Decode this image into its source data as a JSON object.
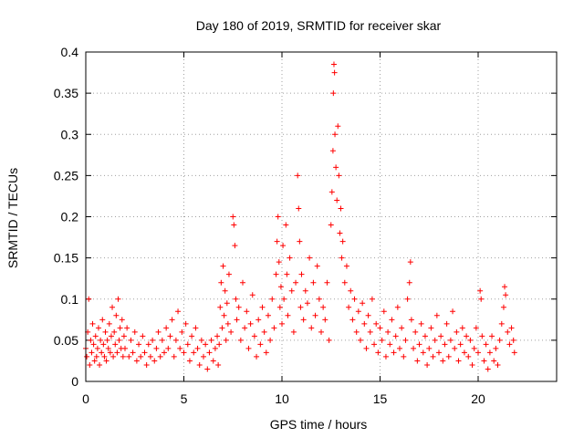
{
  "chart_data": {
    "type": "scatter",
    "title": "Day 180 of 2019, SRMTID for receiver skar",
    "xlabel": "GPS time / hours",
    "ylabel": "SRMTID / TECUs",
    "xlim": [
      0,
      24
    ],
    "ylim": [
      0,
      0.4
    ],
    "xticks": [
      0,
      5,
      10,
      15,
      20
    ],
    "yticks": [
      0,
      0.05,
      0.1,
      0.15,
      0.2,
      0.25,
      0.3,
      0.35,
      0.4
    ],
    "grid": true,
    "marker": "+",
    "color": "#ff0000",
    "series": [
      {
        "points": [
          [
            0.0,
            0.04
          ],
          [
            0.05,
            0.03
          ],
          [
            0.1,
            0.06
          ],
          [
            0.15,
            0.1
          ],
          [
            0.2,
            0.02
          ],
          [
            0.25,
            0.05
          ],
          [
            0.3,
            0.035
          ],
          [
            0.35,
            0.07
          ],
          [
            0.4,
            0.045
          ],
          [
            0.45,
            0.025
          ],
          [
            0.5,
            0.055
          ],
          [
            0.55,
            0.03
          ],
          [
            0.6,
            0.04
          ],
          [
            0.65,
            0.065
          ],
          [
            0.7,
            0.02
          ],
          [
            0.75,
            0.05
          ],
          [
            0.8,
            0.035
          ],
          [
            0.85,
            0.075
          ],
          [
            0.9,
            0.045
          ],
          [
            0.95,
            0.03
          ],
          [
            1.0,
            0.06
          ],
          [
            1.05,
            0.025
          ],
          [
            1.1,
            0.05
          ],
          [
            1.15,
            0.04
          ],
          [
            1.2,
            0.07
          ],
          [
            1.25,
            0.035
          ],
          [
            1.3,
            0.055
          ],
          [
            1.35,
            0.09
          ],
          [
            1.4,
            0.03
          ],
          [
            1.45,
            0.06
          ],
          [
            1.5,
            0.045
          ],
          [
            1.55,
            0.08
          ],
          [
            1.6,
            0.035
          ],
          [
            1.65,
            0.1
          ],
          [
            1.7,
            0.05
          ],
          [
            1.75,
            0.065
          ],
          [
            1.8,
            0.04
          ],
          [
            1.85,
            0.075
          ],
          [
            1.9,
            0.03
          ],
          [
            1.95,
            0.055
          ],
          [
            2.0,
            0.04
          ],
          [
            2.1,
            0.065
          ],
          [
            2.2,
            0.03
          ],
          [
            2.3,
            0.05
          ],
          [
            2.4,
            0.035
          ],
          [
            2.5,
            0.06
          ],
          [
            2.6,
            0.025
          ],
          [
            2.7,
            0.045
          ],
          [
            2.8,
            0.03
          ],
          [
            2.9,
            0.055
          ],
          [
            3.0,
            0.035
          ],
          [
            3.1,
            0.02
          ],
          [
            3.2,
            0.045
          ],
          [
            3.3,
            0.03
          ],
          [
            3.4,
            0.05
          ],
          [
            3.5,
            0.025
          ],
          [
            3.6,
            0.04
          ],
          [
            3.7,
            0.06
          ],
          [
            3.8,
            0.03
          ],
          [
            3.9,
            0.05
          ],
          [
            4.0,
            0.035
          ],
          [
            4.1,
            0.065
          ],
          [
            4.2,
            0.04
          ],
          [
            4.3,
            0.055
          ],
          [
            4.4,
            0.075
          ],
          [
            4.5,
            0.03
          ],
          [
            4.6,
            0.05
          ],
          [
            4.7,
            0.085
          ],
          [
            4.8,
            0.04
          ],
          [
            4.9,
            0.06
          ],
          [
            5.0,
            0.035
          ],
          [
            5.1,
            0.07
          ],
          [
            5.2,
            0.045
          ],
          [
            5.3,
            0.025
          ],
          [
            5.4,
            0.055
          ],
          [
            5.5,
            0.035
          ],
          [
            5.6,
            0.065
          ],
          [
            5.7,
            0.04
          ],
          [
            5.8,
            0.02
          ],
          [
            5.9,
            0.05
          ],
          [
            6.0,
            0.03
          ],
          [
            6.1,
            0.045
          ],
          [
            6.2,
            0.015
          ],
          [
            6.3,
            0.035
          ],
          [
            6.4,
            0.05
          ],
          [
            6.5,
            0.025
          ],
          [
            6.6,
            0.04
          ],
          [
            6.7,
            0.055
          ],
          [
            6.75,
            0.02
          ],
          [
            6.8,
            0.045
          ],
          [
            6.85,
            0.09
          ],
          [
            6.9,
            0.12
          ],
          [
            6.95,
            0.065
          ],
          [
            7.0,
            0.14
          ],
          [
            7.05,
            0.08
          ],
          [
            7.1,
            0.11
          ],
          [
            7.15,
            0.05
          ],
          [
            7.2,
            0.095
          ],
          [
            7.25,
            0.07
          ],
          [
            7.3,
            0.13
          ],
          [
            7.4,
            0.06
          ],
          [
            7.5,
            0.2
          ],
          [
            7.55,
            0.19
          ],
          [
            7.6,
            0.165
          ],
          [
            7.65,
            0.1
          ],
          [
            7.7,
            0.075
          ],
          [
            7.8,
            0.09
          ],
          [
            7.9,
            0.05
          ],
          [
            8.0,
            0.12
          ],
          [
            8.1,
            0.065
          ],
          [
            8.2,
            0.085
          ],
          [
            8.3,
            0.04
          ],
          [
            8.4,
            0.07
          ],
          [
            8.5,
            0.105
          ],
          [
            8.6,
            0.055
          ],
          [
            8.7,
            0.03
          ],
          [
            8.8,
            0.075
          ],
          [
            8.9,
            0.045
          ],
          [
            9.0,
            0.09
          ],
          [
            9.1,
            0.06
          ],
          [
            9.2,
            0.035
          ],
          [
            9.3,
            0.08
          ],
          [
            9.4,
            0.05
          ],
          [
            9.5,
            0.1
          ],
          [
            9.6,
            0.065
          ],
          [
            9.7,
            0.13
          ],
          [
            9.75,
            0.17
          ],
          [
            9.8,
            0.2
          ],
          [
            9.85,
            0.145
          ],
          [
            9.9,
            0.09
          ],
          [
            9.95,
            0.115
          ],
          [
            10.0,
            0.07
          ],
          [
            10.05,
            0.165
          ],
          [
            10.1,
            0.1
          ],
          [
            10.2,
            0.19
          ],
          [
            10.25,
            0.13
          ],
          [
            10.3,
            0.08
          ],
          [
            10.4,
            0.15
          ],
          [
            10.5,
            0.11
          ],
          [
            10.6,
            0.06
          ],
          [
            10.7,
            0.12
          ],
          [
            10.8,
            0.25
          ],
          [
            10.85,
            0.21
          ],
          [
            10.9,
            0.17
          ],
          [
            10.95,
            0.09
          ],
          [
            11.0,
            0.13
          ],
          [
            11.1,
            0.075
          ],
          [
            11.2,
            0.11
          ],
          [
            11.3,
            0.095
          ],
          [
            11.4,
            0.15
          ],
          [
            11.5,
            0.065
          ],
          [
            11.6,
            0.12
          ],
          [
            11.7,
            0.08
          ],
          [
            11.8,
            0.14
          ],
          [
            11.9,
            0.1
          ],
          [
            12.0,
            0.06
          ],
          [
            12.1,
            0.09
          ],
          [
            12.2,
            0.075
          ],
          [
            12.3,
            0.12
          ],
          [
            12.4,
            0.05
          ],
          [
            12.5,
            0.19
          ],
          [
            12.55,
            0.23
          ],
          [
            12.6,
            0.28
          ],
          [
            12.62,
            0.35
          ],
          [
            12.65,
            0.385
          ],
          [
            12.68,
            0.375
          ],
          [
            12.7,
            0.3
          ],
          [
            12.75,
            0.26
          ],
          [
            12.8,
            0.22
          ],
          [
            12.85,
            0.31
          ],
          [
            12.9,
            0.25
          ],
          [
            12.95,
            0.18
          ],
          [
            13.0,
            0.21
          ],
          [
            13.05,
            0.15
          ],
          [
            13.1,
            0.17
          ],
          [
            13.2,
            0.12
          ],
          [
            13.3,
            0.14
          ],
          [
            13.4,
            0.09
          ],
          [
            13.5,
            0.11
          ],
          [
            13.6,
            0.075
          ],
          [
            13.7,
            0.1
          ],
          [
            13.8,
            0.06
          ],
          [
            13.9,
            0.085
          ],
          [
            14.0,
            0.05
          ],
          [
            14.1,
            0.095
          ],
          [
            14.2,
            0.07
          ],
          [
            14.3,
            0.04
          ],
          [
            14.4,
            0.08
          ],
          [
            14.5,
            0.06
          ],
          [
            14.6,
            0.1
          ],
          [
            14.7,
            0.045
          ],
          [
            14.8,
            0.07
          ],
          [
            14.9,
            0.035
          ],
          [
            15.0,
            0.065
          ],
          [
            15.1,
            0.05
          ],
          [
            15.2,
            0.085
          ],
          [
            15.3,
            0.03
          ],
          [
            15.4,
            0.06
          ],
          [
            15.5,
            0.045
          ],
          [
            15.6,
            0.075
          ],
          [
            15.7,
            0.035
          ],
          [
            15.8,
            0.055
          ],
          [
            15.9,
            0.09
          ],
          [
            16.0,
            0.04
          ],
          [
            16.1,
            0.065
          ],
          [
            16.2,
            0.03
          ],
          [
            16.3,
            0.05
          ],
          [
            16.4,
            0.1
          ],
          [
            16.5,
            0.12
          ],
          [
            16.55,
            0.145
          ],
          [
            16.6,
            0.075
          ],
          [
            16.7,
            0.04
          ],
          [
            16.8,
            0.06
          ],
          [
            16.9,
            0.025
          ],
          [
            17.0,
            0.045
          ],
          [
            17.1,
            0.07
          ],
          [
            17.2,
            0.035
          ],
          [
            17.3,
            0.055
          ],
          [
            17.4,
            0.02
          ],
          [
            17.5,
            0.04
          ],
          [
            17.6,
            0.065
          ],
          [
            17.7,
            0.03
          ],
          [
            17.8,
            0.05
          ],
          [
            17.9,
            0.08
          ],
          [
            18.0,
            0.035
          ],
          [
            18.1,
            0.055
          ],
          [
            18.2,
            0.025
          ],
          [
            18.3,
            0.045
          ],
          [
            18.4,
            0.07
          ],
          [
            18.5,
            0.03
          ],
          [
            18.6,
            0.05
          ],
          [
            18.7,
            0.085
          ],
          [
            18.8,
            0.04
          ],
          [
            18.9,
            0.06
          ],
          [
            19.0,
            0.025
          ],
          [
            19.1,
            0.045
          ],
          [
            19.2,
            0.065
          ],
          [
            19.3,
            0.035
          ],
          [
            19.4,
            0.055
          ],
          [
            19.5,
            0.03
          ],
          [
            19.6,
            0.05
          ],
          [
            19.7,
            0.02
          ],
          [
            19.8,
            0.04
          ],
          [
            19.9,
            0.065
          ],
          [
            20.0,
            0.035
          ],
          [
            20.1,
            0.11
          ],
          [
            20.15,
            0.1
          ],
          [
            20.2,
            0.055
          ],
          [
            20.3,
            0.025
          ],
          [
            20.4,
            0.045
          ],
          [
            20.5,
            0.015
          ],
          [
            20.6,
            0.035
          ],
          [
            20.7,
            0.055
          ],
          [
            20.8,
            0.025
          ],
          [
            20.9,
            0.04
          ],
          [
            21.0,
            0.02
          ],
          [
            21.1,
            0.05
          ],
          [
            21.2,
            0.07
          ],
          [
            21.3,
            0.09
          ],
          [
            21.35,
            0.115
          ],
          [
            21.4,
            0.105
          ],
          [
            21.5,
            0.06
          ],
          [
            21.6,
            0.045
          ],
          [
            21.7,
            0.065
          ],
          [
            21.8,
            0.05
          ],
          [
            21.85,
            0.035
          ]
        ]
      }
    ]
  }
}
